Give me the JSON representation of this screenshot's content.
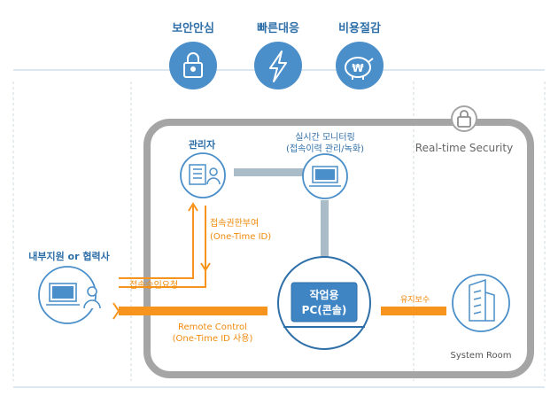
{
  "colors": {
    "accent_blue": "#4a8fc9",
    "dark_blue": "#2f6fa8",
    "orange": "#f7941d",
    "gray_frame": "#a5a5a5",
    "connector": "#a9bcc8"
  },
  "top_badges": [
    {
      "label": "보안안심",
      "icon": "lock-icon"
    },
    {
      "label": "빠른대응",
      "icon": "lightning-icon"
    },
    {
      "label": "비용절감",
      "icon": "piggy-bank-icon"
    }
  ],
  "security_label": "Real-time Security",
  "admin_label": "관리자",
  "monitor_label_line1": "실시간 모니터링",
  "monitor_label_line2": "(접속이력 관리/녹화)",
  "grant_label_line1": "접속권한부여",
  "grant_label_line2": "(One-Time ID)",
  "staff_label": "내부지원 or 협력사",
  "approval_label": "접속승인요청",
  "remote_label_line1": "Remote Control",
  "remote_label_line2": "(One-Time ID 사용)",
  "console_label_line1": "작업용",
  "console_label_line2": "PC(콘솔)",
  "maintenance_label": "유지보수",
  "system_room_label": "System Room"
}
